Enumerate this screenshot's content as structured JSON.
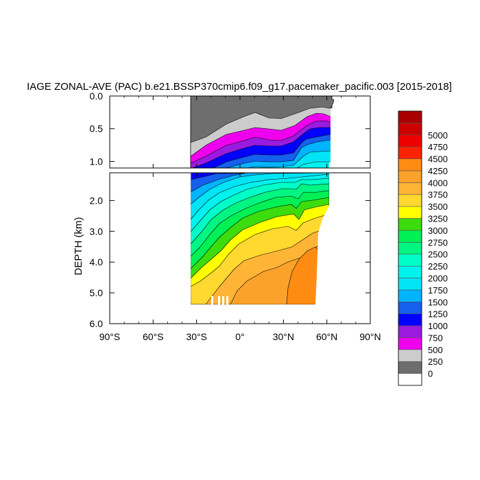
{
  "chart_data": {
    "type": "heatmap",
    "title": "IAGE ZONAL-AVE (PAC) b.e21.BSSP370cmip6.f09_g17.pacemaker_pacific.003 [2015-2018]",
    "ylabel": "DEPTH (km)",
    "xlabel": "",
    "xlim": [
      -90,
      90
    ],
    "ylim_upper": [
      0,
      1.1
    ],
    "ylim_lower": [
      1.1,
      6.0
    ],
    "x_ticks": [
      "90°S",
      "60°S",
      "30°S",
      "0°",
      "30°N",
      "60°N",
      "90°N"
    ],
    "y_ticks_upper": [
      "0.0",
      "0.5",
      "1.0"
    ],
    "y_ticks_lower": [
      "2.0",
      "3.0",
      "4.0",
      "5.0",
      "6.0"
    ],
    "data_extent": {
      "lat_min": -34,
      "lat_max": 62,
      "depth_max_km": 5.4
    },
    "colorbar": {
      "labels": [
        "0",
        "250",
        "500",
        "750",
        "1000",
        "1250",
        "1500",
        "1750",
        "2000",
        "2250",
        "2500",
        "2750",
        "3000",
        "3250",
        "3500",
        "3750",
        "4000",
        "4250",
        "4500",
        "4750",
        "5000"
      ],
      "colors": [
        "#ffffff",
        "#6e6e6e",
        "#cccccc",
        "#ee00ee",
        "#9a1bdf",
        "#0000ff",
        "#1560ec",
        "#00b4ff",
        "#00e4f6",
        "#00f2ee",
        "#00ffc8",
        "#00f582",
        "#00f055",
        "#3cdc0e",
        "#ffff00",
        "#ffd830",
        "#ffb436",
        "#fba22b",
        "#ff8c12",
        "#ff2200",
        "#ec0000",
        "#cc0000",
        "#a80000"
      ]
    }
  }
}
